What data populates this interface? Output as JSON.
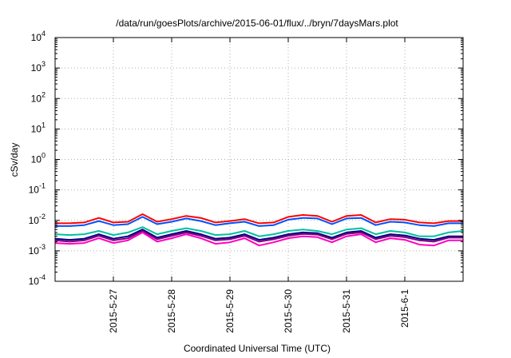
{
  "chart_data": {
    "type": "line",
    "title": "/data/run/goesPlots/archive/2015-06-01/flux/../bryn/7daysMars.plot",
    "xlabel": "Coordinated Universal Time (UTC)",
    "ylabel": "cSv/day",
    "yscale": "log",
    "ylim": [
      0.0001,
      10000
    ],
    "xlim": [
      "2015-05-26 00:00",
      "2015-06-02 00:00"
    ],
    "grid": true,
    "legend": "none",
    "y_ticks": [
      {
        "value": 0.0001,
        "base": "10",
        "exp": "-4"
      },
      {
        "value": 0.001,
        "base": "10",
        "exp": "-3"
      },
      {
        "value": 0.01,
        "base": "10",
        "exp": "-2"
      },
      {
        "value": 0.1,
        "base": "10",
        "exp": "-1"
      },
      {
        "value": 1,
        "base": "10",
        "exp": "0"
      },
      {
        "value": 10,
        "base": "10",
        "exp": "1"
      },
      {
        "value": 100,
        "base": "10",
        "exp": "2"
      },
      {
        "value": 1000,
        "base": "10",
        "exp": "3"
      },
      {
        "value": 10000,
        "base": "10",
        "exp": "4"
      }
    ],
    "x_ticks": [
      {
        "value": "2015-05-27 00:00",
        "label": "2015-5-27"
      },
      {
        "value": "2015-05-28 00:00",
        "label": "2015-5-28"
      },
      {
        "value": "2015-05-29 00:00",
        "label": "2015-5-29"
      },
      {
        "value": "2015-05-30 00:00",
        "label": "2015-5-30"
      },
      {
        "value": "2015-05-31 00:00",
        "label": "2015-5-31"
      },
      {
        "value": "2015-06-01 00:00",
        "label": "2015-6-1"
      }
    ],
    "x": [
      "2015-05-26 00:00",
      "2015-05-26 06:00",
      "2015-05-26 12:00",
      "2015-05-26 18:00",
      "2015-05-27 00:00",
      "2015-05-27 06:00",
      "2015-05-27 12:00",
      "2015-05-27 18:00",
      "2015-05-28 00:00",
      "2015-05-28 06:00",
      "2015-05-28 12:00",
      "2015-05-28 18:00",
      "2015-05-29 00:00",
      "2015-05-29 06:00",
      "2015-05-29 12:00",
      "2015-05-29 18:00",
      "2015-05-30 00:00",
      "2015-05-30 06:00",
      "2015-05-30 12:00",
      "2015-05-30 18:00",
      "2015-05-31 00:00",
      "2015-05-31 06:00",
      "2015-05-31 12:00",
      "2015-05-31 18:00",
      "2015-06-01 00:00",
      "2015-06-01 06:00",
      "2015-06-01 12:00",
      "2015-06-01 18:00",
      "2015-06-02 00:00"
    ],
    "series": [
      {
        "color": "#ff0000",
        "values": [
          0.008,
          0.008,
          0.0085,
          0.012,
          0.0085,
          0.009,
          0.016,
          0.009,
          0.011,
          0.014,
          0.012,
          0.0085,
          0.0095,
          0.011,
          0.008,
          0.0085,
          0.013,
          0.015,
          0.014,
          0.009,
          0.014,
          0.015,
          0.0085,
          0.011,
          0.0105,
          0.0085,
          0.008,
          0.0095,
          0.0095
        ]
      },
      {
        "color": "#0050ff",
        "values": [
          0.0065,
          0.0065,
          0.007,
          0.0095,
          0.007,
          0.0075,
          0.013,
          0.0075,
          0.009,
          0.0115,
          0.0095,
          0.007,
          0.008,
          0.009,
          0.0065,
          0.007,
          0.0105,
          0.012,
          0.0115,
          0.0075,
          0.0115,
          0.012,
          0.007,
          0.009,
          0.0085,
          0.007,
          0.0065,
          0.008,
          0.008
        ]
      },
      {
        "color": "#00c0a0",
        "values": [
          0.0035,
          0.0033,
          0.0035,
          0.0045,
          0.0033,
          0.004,
          0.006,
          0.0035,
          0.0045,
          0.0055,
          0.0045,
          0.0033,
          0.0035,
          0.0045,
          0.003,
          0.0035,
          0.0045,
          0.005,
          0.0045,
          0.0035,
          0.005,
          0.0055,
          0.0035,
          0.0045,
          0.004,
          0.003,
          0.003,
          0.004,
          0.0045
        ]
      },
      {
        "color": "#000080",
        "values": [
          0.0025,
          0.0023,
          0.0025,
          0.0035,
          0.0025,
          0.003,
          0.005,
          0.0027,
          0.0035,
          0.0045,
          0.0035,
          0.0025,
          0.0027,
          0.0035,
          0.0023,
          0.0027,
          0.0035,
          0.004,
          0.0038,
          0.0027,
          0.004,
          0.0045,
          0.0027,
          0.0035,
          0.0032,
          0.0025,
          0.0023,
          0.003,
          0.003
        ]
      },
      {
        "color": "#800080",
        "values": [
          0.0022,
          0.002,
          0.0022,
          0.0031,
          0.0022,
          0.0026,
          0.0045,
          0.0024,
          0.0031,
          0.004,
          0.0031,
          0.0022,
          0.0024,
          0.0031,
          0.002,
          0.0024,
          0.0031,
          0.0036,
          0.0034,
          0.0024,
          0.0036,
          0.004,
          0.0024,
          0.0031,
          0.0028,
          0.0022,
          0.002,
          0.0027,
          0.0027
        ]
      },
      {
        "color": "#ff00c0",
        "values": [
          0.0018,
          0.0017,
          0.0018,
          0.0026,
          0.0018,
          0.0022,
          0.004,
          0.002,
          0.0026,
          0.0035,
          0.0026,
          0.0017,
          0.0019,
          0.0026,
          0.0015,
          0.0019,
          0.0026,
          0.003,
          0.0028,
          0.0019,
          0.003,
          0.0035,
          0.0019,
          0.0026,
          0.0023,
          0.0016,
          0.0015,
          0.0022,
          0.0022
        ]
      }
    ]
  }
}
